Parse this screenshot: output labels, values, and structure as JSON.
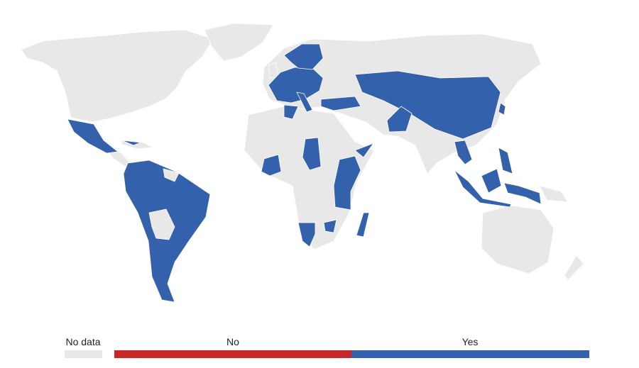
{
  "legend": {
    "items": [
      {
        "label": "No data",
        "color": "#e8e8e8"
      },
      {
        "label": "No",
        "color": "#c62828"
      },
      {
        "label": "Yes",
        "color": "#3461ab"
      }
    ]
  }
}
